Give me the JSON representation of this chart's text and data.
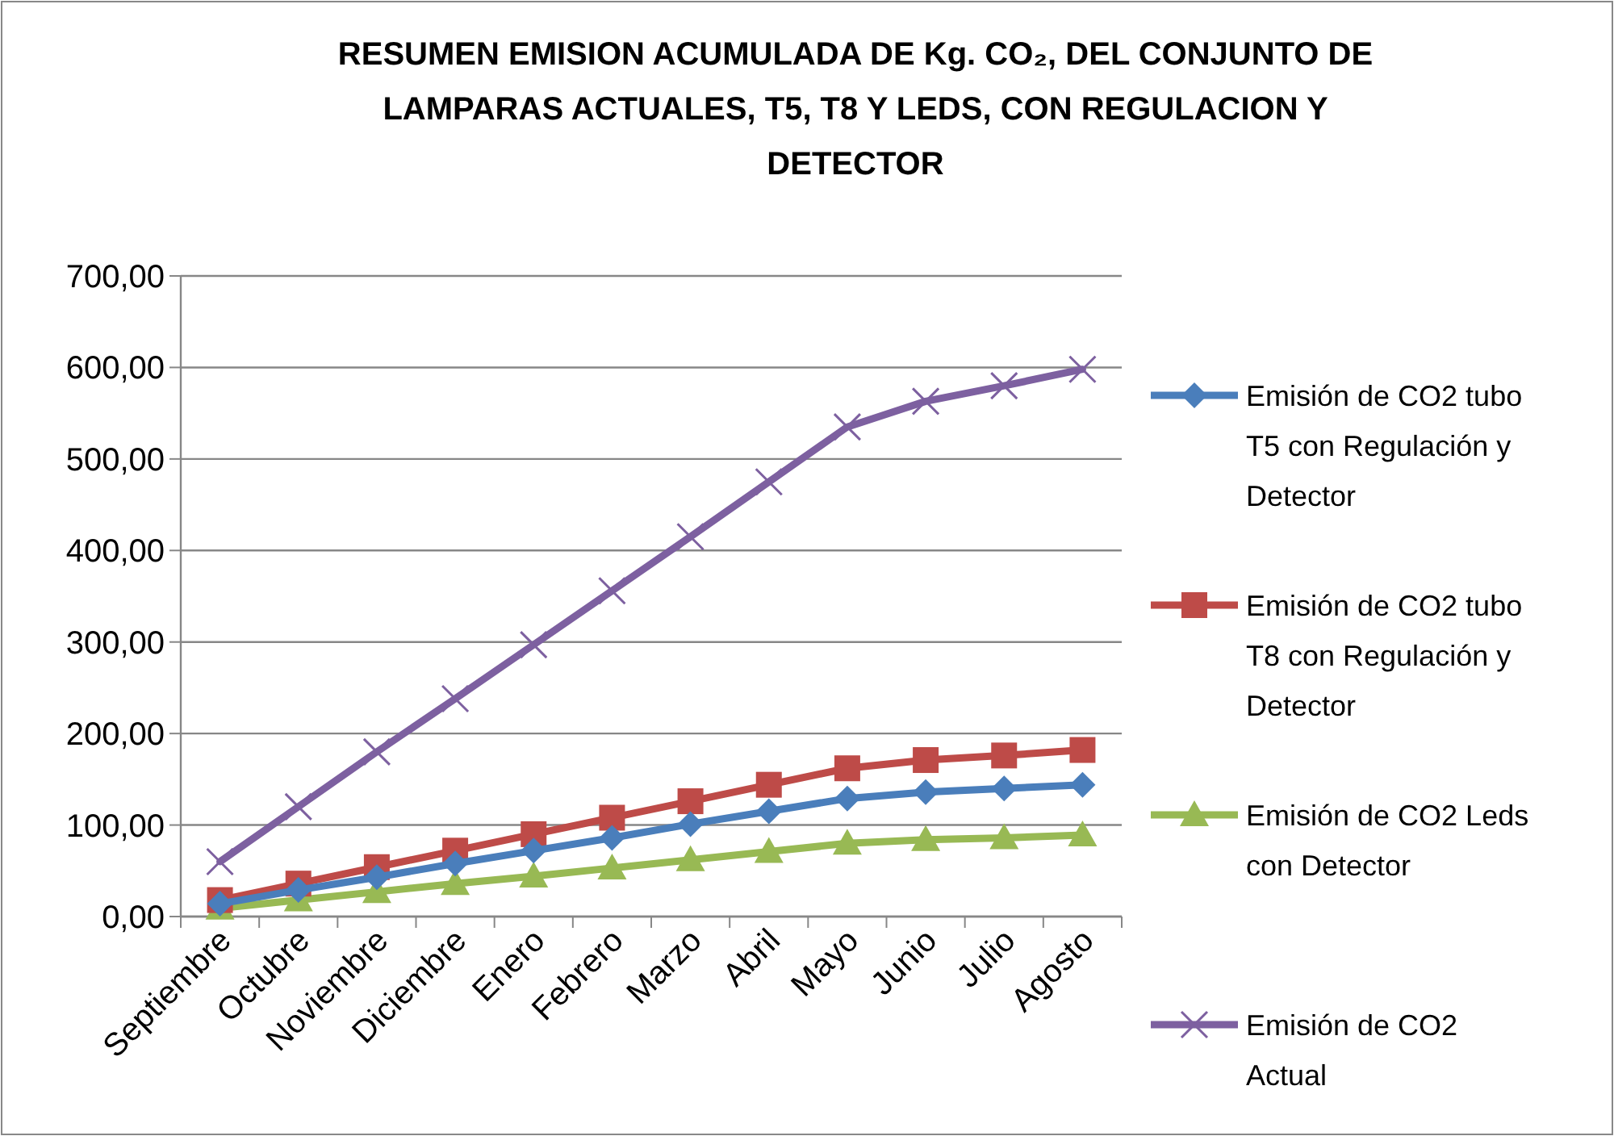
{
  "chart_data": {
    "type": "line",
    "title": "RESUMEN EMISION ACUMULADA DE Kg. CO₂, DEL CONJUNTO DE LAMPARAS ACTUALES, T5, T8 Y LEDS, CON REGULACION Y DETECTOR",
    "categories": [
      "Septiembre",
      "Octubre",
      "Noviembre",
      "Diciembre",
      "Enero",
      "Febrero",
      "Marzo",
      "Abril",
      "Mayo",
      "Junio",
      "Julio",
      "Agosto"
    ],
    "series": [
      {
        "name": "Emisión de CO2 tubo T5 con Regulación y Detector",
        "color": "#4a7ebb",
        "marker": "diamond",
        "values": [
          14,
          29,
          43,
          58,
          72,
          86,
          101,
          115,
          129,
          136,
          140,
          144
        ]
      },
      {
        "name": "Emisión de CO2 tubo T8 con Regulación y Detector",
        "color": "#be4b48",
        "marker": "square",
        "values": [
          18,
          36,
          54,
          72,
          90,
          108,
          126,
          144,
          162,
          171,
          176,
          182
        ]
      },
      {
        "name": "Emisión de CO2 Leds con Detector",
        "color": "#98b954",
        "marker": "triangle",
        "values": [
          9,
          18,
          27,
          36,
          44,
          53,
          62,
          71,
          80,
          84,
          86,
          89
        ]
      },
      {
        "name": "Emisión de CO2 Actual",
        "color": "#7d60a0",
        "marker": "cross",
        "values": [
          60,
          120,
          180,
          238,
          297,
          356,
          415,
          475,
          535,
          563,
          580,
          598
        ]
      }
    ],
    "ylim": [
      0,
      700
    ],
    "yticks": [
      {
        "value": 0,
        "label": "0,00"
      },
      {
        "value": 100,
        "label": "100,00"
      },
      {
        "value": 200,
        "label": "200,00"
      },
      {
        "value": 300,
        "label": "300,00"
      },
      {
        "value": 400,
        "label": "400,00"
      },
      {
        "value": 500,
        "label": "500,00"
      },
      {
        "value": 600,
        "label": "600,00"
      },
      {
        "value": 700,
        "label": "700,00"
      }
    ],
    "grid": "y",
    "legend": "right",
    "line_style": "solid"
  }
}
